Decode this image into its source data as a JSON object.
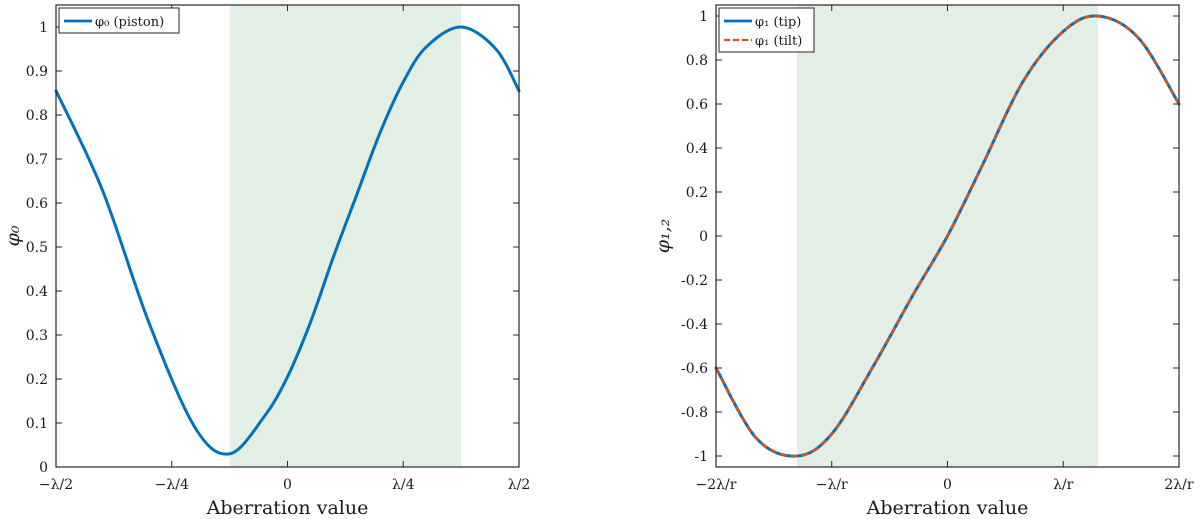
{
  "chart_data": [
    {
      "type": "line",
      "xlabel": "Aberration value",
      "ylabel": "φ₀",
      "xlim": [
        -0.5,
        0.5
      ],
      "ylim": [
        0,
        1.05
      ],
      "x_ticks": [
        -0.5,
        -0.25,
        0,
        0.25,
        0.5
      ],
      "x_tick_labels": [
        "−λ/2",
        "−λ/4",
        "0",
        "λ/4",
        "λ/2"
      ],
      "y_ticks": [
        0,
        0.1,
        0.2,
        0.3,
        0.4,
        0.5,
        0.6,
        0.7,
        0.8,
        0.9,
        1
      ],
      "y_tick_labels": [
        "0",
        "0.1",
        "0.2",
        "0.3",
        "0.4",
        "0.5",
        "0.6",
        "0.7",
        "0.8",
        "0.9",
        "1"
      ],
      "shaded_region": {
        "x": [
          -0.125,
          0.375
        ],
        "color": "#e3efe4"
      },
      "legend_position": "top-left",
      "series": [
        {
          "name": "φ₀ (piston)",
          "color": "#0072bd",
          "style": "solid",
          "x": [
            -0.5,
            -0.4,
            -0.3,
            -0.2,
            -0.125,
            -0.05,
            0.0,
            0.05,
            0.1,
            0.15,
            0.2,
            0.25,
            0.3,
            0.375,
            0.45,
            0.5
          ],
          "y": [
            0.855,
            0.63,
            0.33,
            0.09,
            0.03,
            0.115,
            0.205,
            0.33,
            0.48,
            0.62,
            0.76,
            0.875,
            0.955,
            1.0,
            0.95,
            0.855
          ]
        }
      ]
    },
    {
      "type": "line",
      "xlabel": "Aberration value",
      "ylabel": "φ₁,₂",
      "xlim": [
        -2,
        2
      ],
      "ylim": [
        -1.05,
        1.05
      ],
      "x_ticks": [
        -2,
        -1,
        0,
        1,
        2
      ],
      "x_tick_labels": [
        "−2λ/r",
        "−λ/r",
        "0",
        "λ/r",
        "2λ/r"
      ],
      "y_ticks": [
        -1,
        -0.8,
        -0.6,
        -0.4,
        -0.2,
        0,
        0.2,
        0.4,
        0.6,
        0.8,
        1
      ],
      "y_tick_labels": [
        "-1",
        "-0.8",
        "-0.6",
        "-0.4",
        "-0.2",
        "0",
        "0.2",
        "0.4",
        "0.6",
        "0.8",
        "1"
      ],
      "shaded_region": {
        "x": [
          -1.3,
          1.3
        ],
        "color": "#e3efe4"
      },
      "legend_position": "top-left",
      "series": [
        {
          "name": "φ₁ (tip)",
          "color": "#0072bd",
          "style": "solid",
          "x": [
            -2,
            -1.65,
            -1.3,
            -1.0,
            -0.65,
            -0.3,
            0.0,
            0.3,
            0.65,
            1.0,
            1.3,
            1.65,
            2.0
          ],
          "y": [
            -0.6,
            -0.92,
            -1.0,
            -0.9,
            -0.6,
            -0.27,
            0.0,
            0.32,
            0.7,
            0.93,
            1.0,
            0.9,
            0.6
          ]
        },
        {
          "name": "φ₁ (tilt)",
          "color": "#d95319",
          "style": "dashed",
          "x": [
            -2,
            -1.65,
            -1.3,
            -1.0,
            -0.65,
            -0.3,
            0.0,
            0.3,
            0.65,
            1.0,
            1.3,
            1.65,
            2.0
          ],
          "y": [
            -0.6,
            -0.92,
            -1.0,
            -0.9,
            -0.6,
            -0.27,
            0.0,
            0.32,
            0.7,
            0.93,
            1.0,
            0.9,
            0.6
          ]
        }
      ]
    }
  ]
}
